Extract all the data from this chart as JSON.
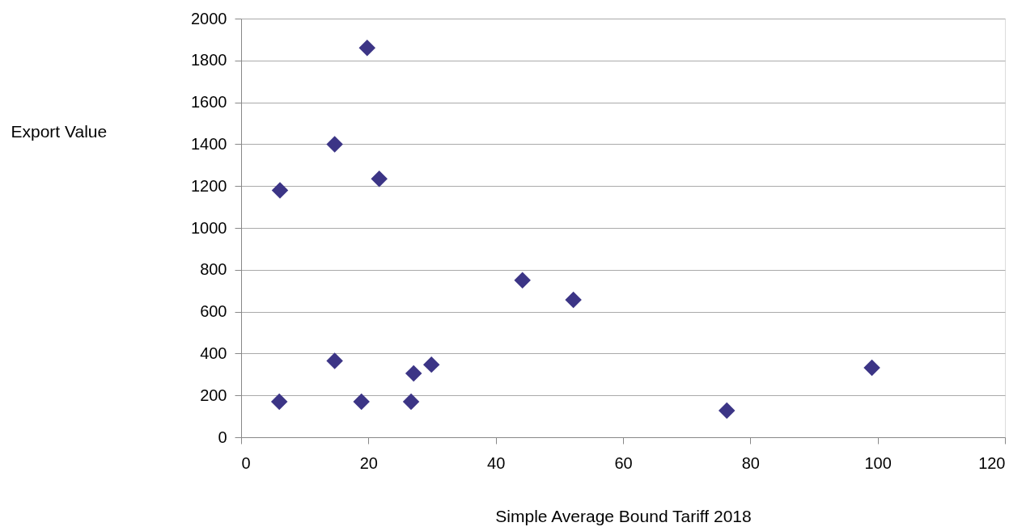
{
  "chart_data": {
    "type": "scatter",
    "xlabel": "Simple Average Bound Tariff 2018",
    "ylabel": "Export Value",
    "x": [
      19.8,
      14.7,
      6.1,
      21.7,
      44.2,
      52.2,
      14.7,
      6.0,
      18.9,
      26.7,
      27.1,
      29.9,
      76.3,
      99.1
    ],
    "series": [
      {
        "color": "#3c3586",
        "values": [
          1860,
          1400,
          1180,
          1235,
          750,
          656,
          365,
          170,
          170,
          170,
          305,
          347,
          127,
          332
        ]
      }
    ],
    "xlim": [
      0,
      120
    ],
    "xticks": [
      0,
      20,
      40,
      60,
      80,
      100,
      120
    ],
    "ylim": [
      0,
      2000
    ],
    "yticks": [
      0,
      200,
      400,
      600,
      800,
      1000,
      1200,
      1400,
      1600,
      1800,
      2000
    ],
    "grid": "y",
    "marker": "diamond",
    "legend": false
  }
}
